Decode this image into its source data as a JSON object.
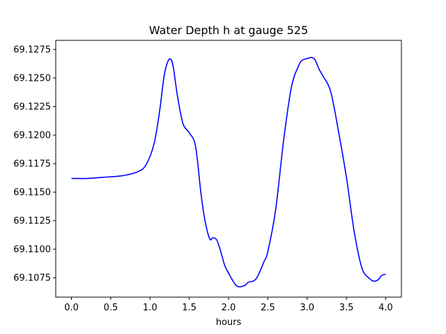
{
  "chart_data": {
    "type": "line",
    "title": "Water Depth h at gauge 525",
    "xlabel": "hours",
    "ylabel": "",
    "xlim": [
      -0.2,
      4.2
    ],
    "ylim": [
      69.1058,
      69.1283
    ],
    "x_ticks": [
      0.0,
      0.5,
      1.0,
      1.5,
      2.0,
      2.5,
      3.0,
      3.5,
      4.0
    ],
    "x_tick_labels": [
      "0.0",
      "0.5",
      "1.0",
      "1.5",
      "2.0",
      "2.5",
      "3.0",
      "3.5",
      "4.0"
    ],
    "y_ticks": [
      69.1075,
      69.11,
      69.1125,
      69.115,
      69.1175,
      69.12,
      69.1225,
      69.125,
      69.1275
    ],
    "y_tick_labels": [
      "69.1075",
      "69.1100",
      "69.1125",
      "69.1150",
      "69.1175",
      "69.1200",
      "69.1225",
      "69.1250",
      "69.1275"
    ],
    "grid": false,
    "series": [
      {
        "color": "#0000ff",
        "x": [
          0.0,
          0.2,
          0.4,
          0.6,
          0.7,
          0.85,
          0.95,
          1.05,
          1.12,
          1.18,
          1.23,
          1.27,
          1.3,
          1.35,
          1.42,
          1.5,
          1.58,
          1.65,
          1.7,
          1.76,
          1.8,
          1.85,
          1.9,
          1.95,
          2.0,
          2.1,
          2.2,
          2.25,
          2.35,
          2.45,
          2.5,
          2.6,
          2.7,
          2.8,
          2.9,
          2.95,
          3.0,
          3.05,
          3.1,
          3.15,
          3.2,
          3.3,
          3.4,
          3.5,
          3.6,
          3.7,
          3.8,
          3.85,
          3.9,
          3.95,
          4.0
        ],
        "y": [
          69.1162,
          69.1162,
          69.1163,
          69.1164,
          69.1165,
          69.1168,
          69.1174,
          69.1192,
          69.122,
          69.1252,
          69.1265,
          69.1266,
          69.1258,
          69.1234,
          69.121,
          69.1202,
          69.119,
          69.1148,
          69.1125,
          69.1109,
          69.111,
          69.1108,
          69.1098,
          69.1086,
          69.1079,
          69.1068,
          69.1068,
          69.1071,
          69.1074,
          69.1089,
          69.1098,
          69.1135,
          69.1195,
          69.1242,
          69.1262,
          69.1266,
          69.1267,
          69.1268,
          69.1266,
          69.1258,
          69.1252,
          69.1238,
          69.1203,
          69.1163,
          69.1115,
          69.1083,
          69.1074,
          69.1072,
          69.1073,
          69.1077,
          69.1078
        ]
      }
    ]
  }
}
